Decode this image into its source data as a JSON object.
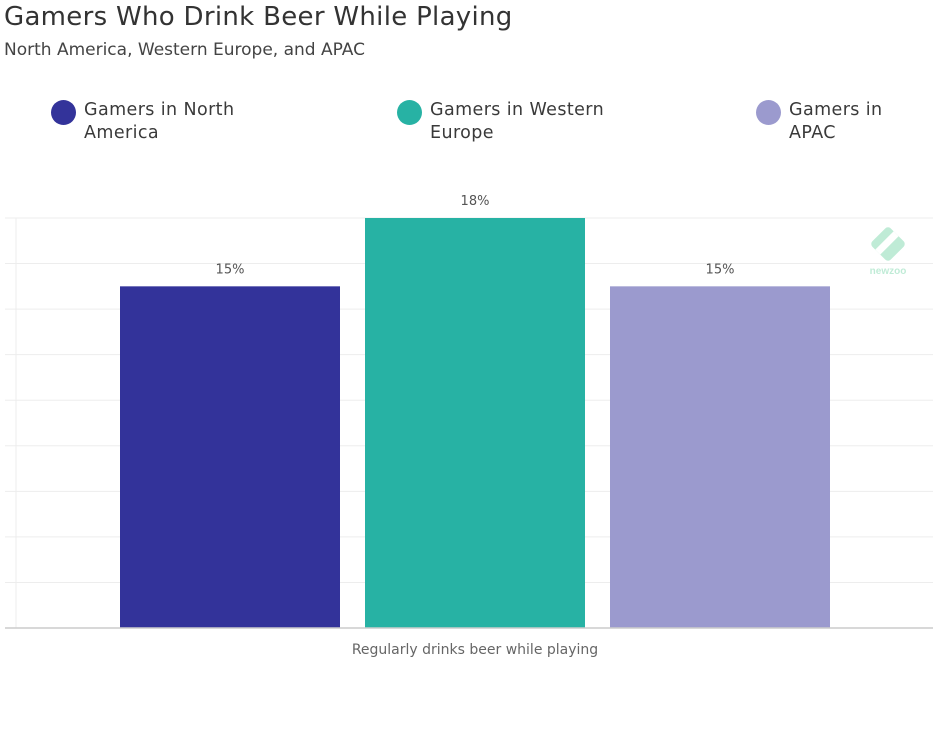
{
  "title": "Gamers Who Drink Beer While Playing",
  "subtitle": "North America, Western Europe, and APAC",
  "legend": [
    {
      "label": "Gamers in North America",
      "color": "#33339a"
    },
    {
      "label": "Gamers in Western Europe",
      "color": "#27b2a4"
    },
    {
      "label": "Gamers in APAC",
      "color": "#9b9ace"
    }
  ],
  "watermark": {
    "text": "newzoo",
    "icon": "newzoo-logo-icon",
    "color": "#2fbf7a"
  },
  "chart_data": {
    "type": "bar",
    "categories": [
      "Regularly drinks beer while playing"
    ],
    "series": [
      {
        "name": "Gamers in North America",
        "values": [
          15
        ],
        "label": "15%",
        "color": "#33339a"
      },
      {
        "name": "Gamers in Western Europe",
        "values": [
          18
        ],
        "label": "18%",
        "color": "#27b2a4"
      },
      {
        "name": "Gamers in APAC",
        "values": [
          15
        ],
        "label": "15%",
        "color": "#9b9ace"
      }
    ],
    "xlabel": "",
    "ylabel": "",
    "ylim": [
      0,
      18
    ],
    "grid": true,
    "legend_position": "top"
  }
}
